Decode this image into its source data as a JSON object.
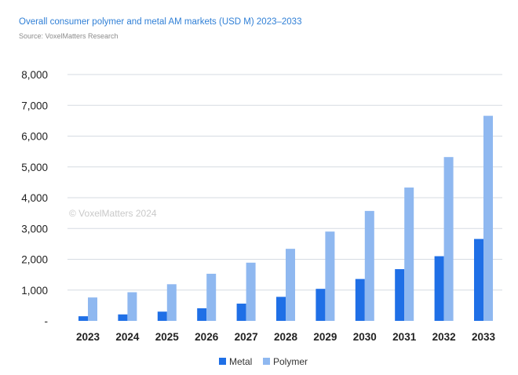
{
  "header": {
    "title": "Overall consumer polymer and metal AM markets (USD M) 2023–2033",
    "source": "Source: VoxelMatters Research"
  },
  "watermark": "© VoxelMatters 2024",
  "colors": {
    "metal": "#1f6fe6",
    "polymer": "#8fb8f0",
    "grid": "#d6dbe2",
    "title": "#2f7fd6"
  },
  "chart_data": {
    "type": "bar",
    "title": "Overall consumer polymer and metal AM markets (USD M) 2023–2033",
    "xlabel": "",
    "ylabel": "",
    "ylim": [
      0,
      8000
    ],
    "yticks": [
      0,
      1000,
      2000,
      3000,
      4000,
      5000,
      6000,
      7000,
      8000
    ],
    "ytick_labels": [
      "-",
      "1,000",
      "2,000",
      "3,000",
      "4,000",
      "5,000",
      "6,000",
      "7,000",
      "8,000"
    ],
    "grid": true,
    "legend_position": "bottom-center",
    "categories": [
      "2023",
      "2024",
      "2025",
      "2026",
      "2027",
      "2028",
      "2029",
      "2030",
      "2031",
      "2032",
      "2033"
    ],
    "series": [
      {
        "name": "Metal",
        "values": [
          150,
          210,
          300,
          410,
          560,
          780,
          1040,
          1360,
          1680,
          2100,
          2660
        ]
      },
      {
        "name": "Polymer",
        "values": [
          760,
          930,
          1190,
          1530,
          1890,
          2340,
          2900,
          3570,
          4330,
          5320,
          6660
        ]
      }
    ]
  }
}
